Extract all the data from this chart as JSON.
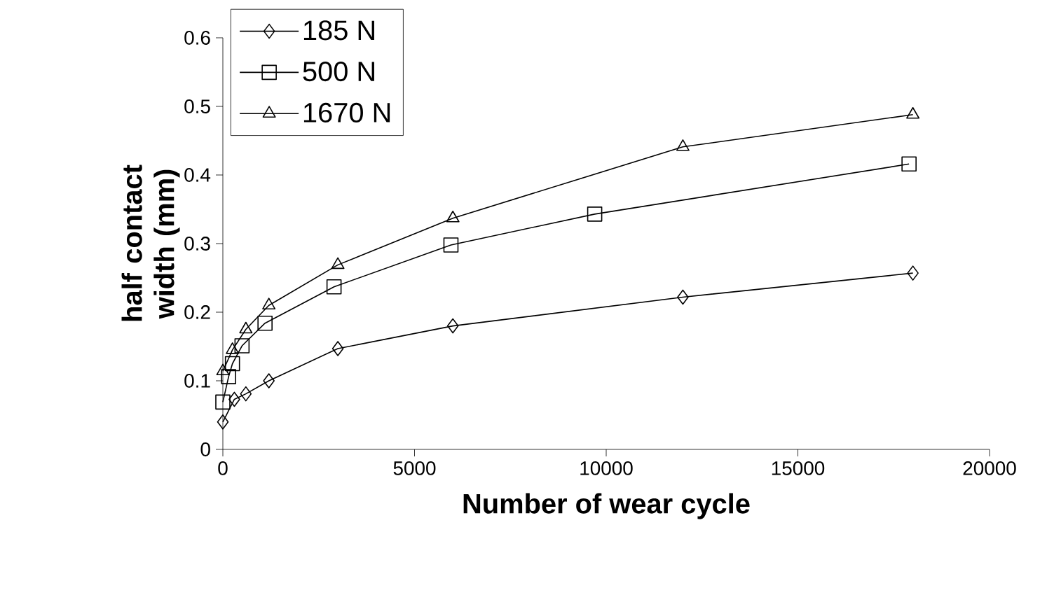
{
  "chart_data": {
    "type": "line",
    "xlabel": "Number of wear cycle",
    "ylabel": "half contact width (mm)",
    "series": [
      {
        "name": "185 N",
        "color": "#000000",
        "marker": "diamond",
        "x": [
          0,
          300,
          600,
          1200,
          3000,
          6000,
          12000,
          18000
        ],
        "values": [
          0.04,
          0.073,
          0.081,
          0.1,
          0.147,
          0.18,
          0.222,
          0.257
        ]
      },
      {
        "name": "500 N",
        "color": "#000000",
        "marker": "square",
        "x": [
          0,
          150,
          250,
          500,
          1100,
          2900,
          5950,
          9700,
          17900
        ],
        "values": [
          0.069,
          0.106,
          0.125,
          0.151,
          0.184,
          0.237,
          0.298,
          0.343,
          0.416
        ]
      },
      {
        "name": "1670 N",
        "color": "#000000",
        "marker": "triangle",
        "x": [
          0,
          250,
          600,
          1200,
          3000,
          6000,
          12000,
          18000
        ],
        "values": [
          0.114,
          0.145,
          0.175,
          0.21,
          0.269,
          0.337,
          0.441,
          0.488
        ]
      }
    ],
    "xlim": [
      0,
      20000
    ],
    "xticks": [
      0,
      5000,
      10000,
      15000,
      20000
    ],
    "ylim": [
      0,
      0.6
    ],
    "yticks": [
      0,
      0.1,
      0.2,
      0.3,
      0.4,
      0.5,
      0.6
    ],
    "grid": false,
    "legend": "top left",
    "line_style": "solid"
  }
}
